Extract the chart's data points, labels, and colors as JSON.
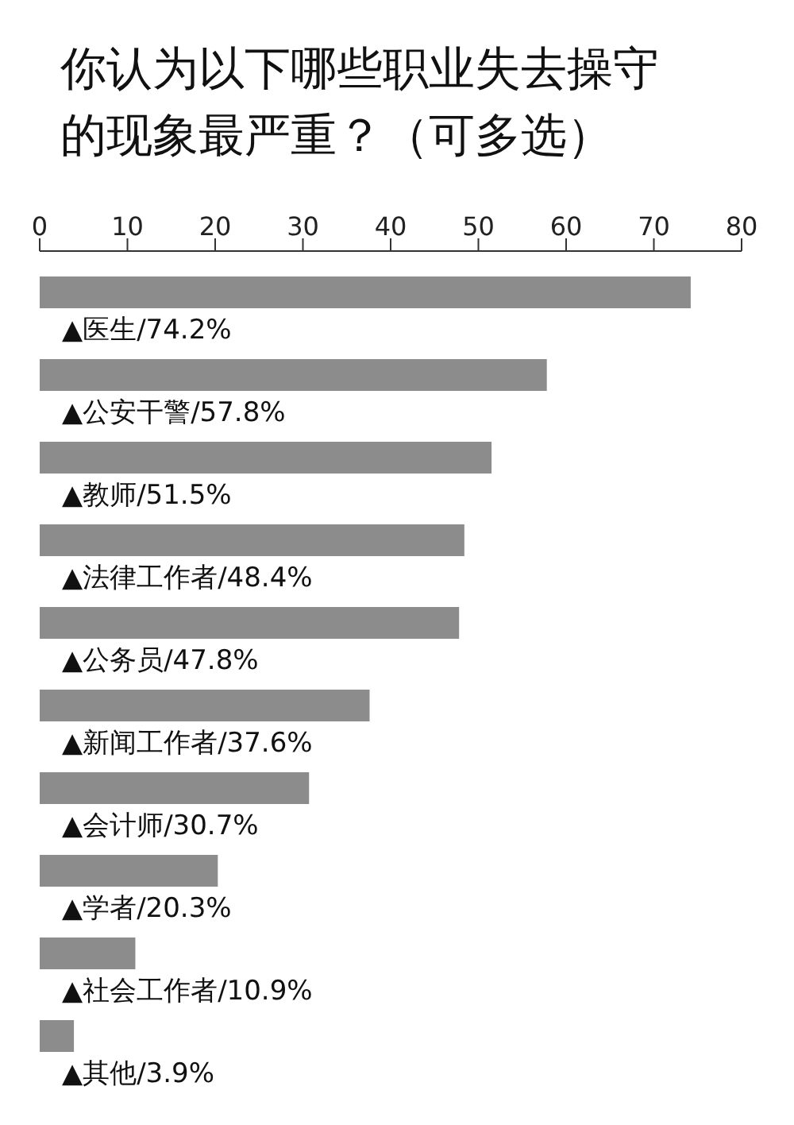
{
  "chart_data": {
    "type": "bar",
    "orientation": "horizontal",
    "title": "你认为以下哪些职业失去操守的现象最严重？（可多选）",
    "categories": [
      "▲医生/74.2%",
      "▲公安干警/57.8%",
      "▲教师/51.5%",
      "▲法律工作者/48.4%",
      "▲公务员/47.8%",
      "▲新闻工作者/37.6%",
      "▲会计师/30.7%",
      "▲学者/20.3%",
      "▲社会工作者/10.9%",
      "▲其他/3.9%"
    ],
    "values": [
      74.2,
      57.8,
      51.5,
      48.4,
      47.8,
      37.6,
      30.7,
      20.3,
      10.9,
      3.9
    ],
    "color": "#8c8c8c",
    "xlim": [
      0,
      80
    ],
    "xticks": [
      0,
      10,
      20,
      30,
      40,
      50,
      60,
      70,
      80
    ],
    "grid": false,
    "legend": false
  }
}
